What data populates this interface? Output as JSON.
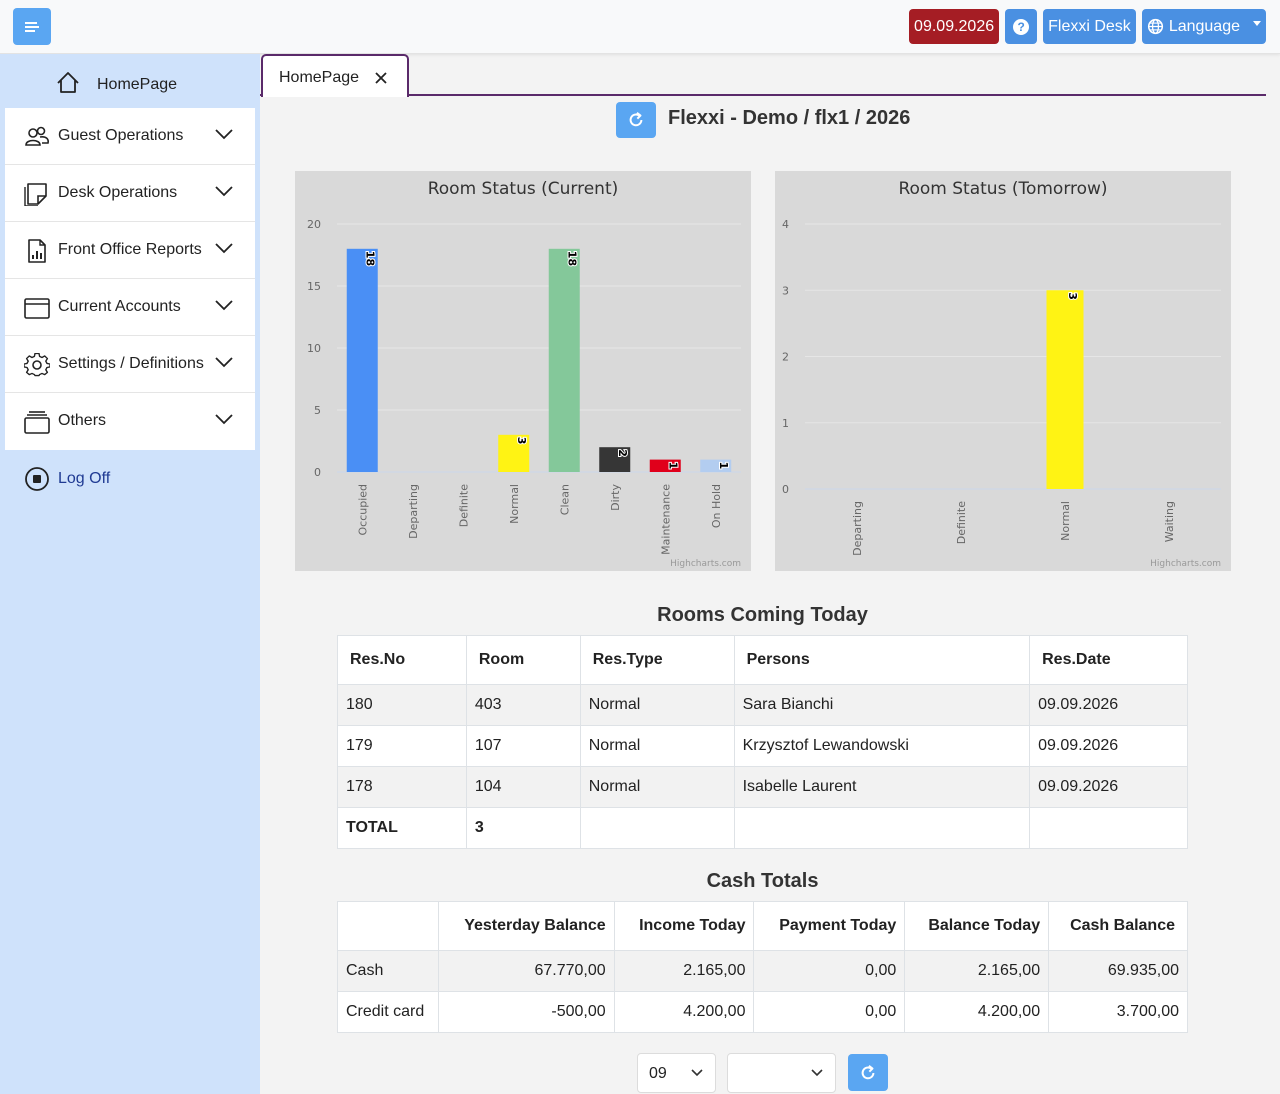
{
  "topbar": {
    "date": "09.09.2026",
    "help": "?",
    "desk": "Flexxi Desk",
    "language": "Language"
  },
  "sidebar": {
    "home": "HomePage",
    "items": [
      {
        "label": "Guest Operations",
        "icon": "users-icon"
      },
      {
        "label": "Desk Operations",
        "icon": "sticky-note-icon"
      },
      {
        "label": "Front Office Reports",
        "icon": "report-file-icon"
      },
      {
        "label": "Current Accounts",
        "icon": "window-icon"
      },
      {
        "label": "Settings / Definitions",
        "icon": "gear-icon"
      },
      {
        "label": "Others",
        "icon": "stack-icon"
      }
    ],
    "logoff": "Log Off"
  },
  "tabs": [
    {
      "label": "HomePage"
    }
  ],
  "page_title": "Flexxi - Demo / flx1 / 2026",
  "chart_data": [
    {
      "type": "bar",
      "title": "Room Status (Current)",
      "credit": "Highcharts.com",
      "categories": [
        "Occupied",
        "Departing",
        "Definite",
        "Normal",
        "Clean",
        "Dirty",
        "Maintenance",
        "On Hold"
      ],
      "values": [
        18,
        0,
        0,
        3,
        18,
        2,
        1,
        1
      ],
      "colors": [
        "#4a8ff5",
        "#4a8ff5",
        "#4a8ff5",
        "#fff314",
        "#84c89a",
        "#363636",
        "#e0001b",
        "#b3cdf0"
      ],
      "ylim": [
        0,
        20
      ],
      "yticks": [
        0,
        5,
        10,
        15,
        20
      ],
      "grid": true,
      "legend": "none"
    },
    {
      "type": "bar",
      "title": "Room Status (Tomorrow)",
      "credit": "Highcharts.com",
      "categories": [
        "Departing",
        "Definite",
        "Normal",
        "Waiting"
      ],
      "values": [
        0,
        0,
        3,
        0
      ],
      "colors": [
        "#4a8ff5",
        "#4a8ff5",
        "#fff314",
        "#4a8ff5"
      ],
      "ylim": [
        0,
        4
      ],
      "yticks": [
        0,
        1,
        2,
        3,
        4
      ],
      "grid": true,
      "legend": "none"
    }
  ],
  "rooms_coming": {
    "title": "Rooms Coming Today",
    "headers": [
      "Res.No",
      "Room",
      "Res.Type",
      "Persons",
      "Res.Date"
    ],
    "rows": [
      [
        "180",
        "403",
        "Normal",
        "Sara Bianchi",
        "09.09.2026"
      ],
      [
        "179",
        "107",
        "Normal",
        "Krzysztof Lewandowski",
        "09.09.2026"
      ],
      [
        "178",
        "104",
        "Normal",
        "Isabelle Laurent",
        "09.09.2026"
      ]
    ],
    "total_label": "TOTAL",
    "total_value": "3"
  },
  "cash_totals": {
    "title": "Cash Totals",
    "headers": [
      "",
      "Yesterday Balance",
      "Income Today",
      "Payment Today",
      "Balance Today",
      "Cash Balance"
    ],
    "rows": [
      [
        "Cash",
        "67.770,00",
        "2.165,00",
        "0,00",
        "2.165,00",
        "69.935,00"
      ],
      [
        "Credit card",
        "-500,00",
        "4.200,00",
        "0,00",
        "4.200,00",
        "3.700,00"
      ]
    ]
  },
  "filters": {
    "month": "09",
    "second": ""
  }
}
